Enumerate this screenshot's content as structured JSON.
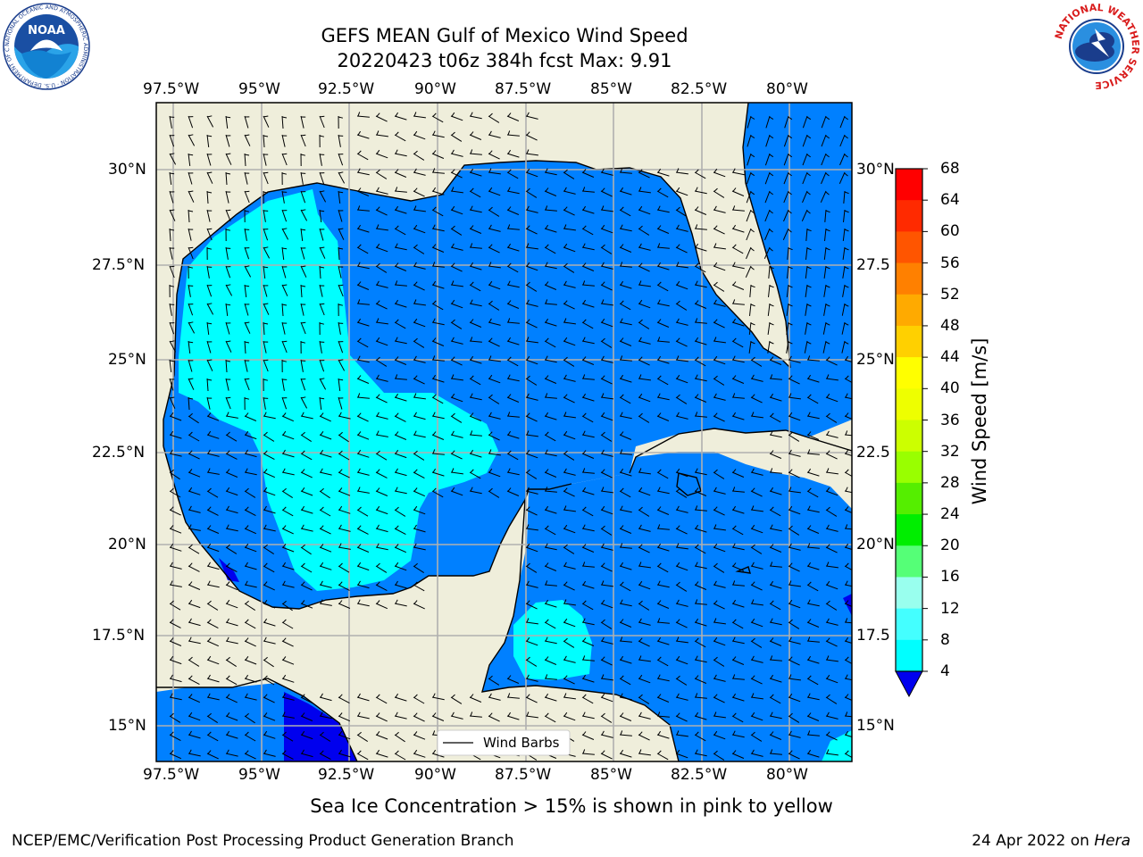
{
  "title_line1": "GEFS MEAN Gulf of Mexico Wind Speed",
  "title_line2": "20220423 t06z 384h fcst   Max: 9.91",
  "lon_labels": [
    "97.5°W",
    "95°W",
    "92.5°W",
    "90°W",
    "87.5°W",
    "85°W",
    "82.5°W",
    "80°W"
  ],
  "lat_labels_left": [
    "30°N",
    "27.5°N",
    "25°N",
    "22.5°N",
    "20°N",
    "17.5°N",
    "15°N"
  ],
  "lat_labels_right": [
    "30°N",
    "27.5",
    "25°N",
    "22.5",
    "20°N",
    "17.5",
    "15°N"
  ],
  "legend_label": "Wind Barbs",
  "colorbar": {
    "label": "Wind Speed [m/s]",
    "ticks": [
      "68",
      "64",
      "60",
      "56",
      "52",
      "48",
      "44",
      "40",
      "36",
      "32",
      "28",
      "24",
      "20",
      "16",
      "12",
      "8",
      "4"
    ],
    "colors": [
      "#ff0000",
      "#ff2a00",
      "#ff5500",
      "#ff8000",
      "#ffaa00",
      "#ffd000",
      "#ffff00",
      "#eeff00",
      "#ccff00",
      "#99ff00",
      "#55ee00",
      "#00ee00",
      "#55ff77",
      "#99ffee",
      "#44ffff",
      "#00ffff",
      "#0080ff"
    ],
    "under_color": "#0000ee"
  },
  "ice_note": "Sea Ice Concentration > 15% is shown in pink to yellow",
  "footer_left": "NCEP/EMC/Verification Post Processing Product Generation Branch",
  "footer_right_date": "24 Apr 2022 on ",
  "footer_right_host": "Hera",
  "colors": {
    "land": "#efeedb",
    "ocean_blue": "#0080ff",
    "cyan": "#00ffff",
    "deep_blue": "#0000ee"
  },
  "noaa_logo": {
    "text": "NOAA",
    "ring_text": "NATIONAL OCEANIC AND ATMOSPHERIC ADMINISTRATION · U.S. DEPARTMENT OF COMMERCE"
  },
  "nws_logo": {
    "ring_text": "NATIONAL WEATHER SERVICE"
  }
}
